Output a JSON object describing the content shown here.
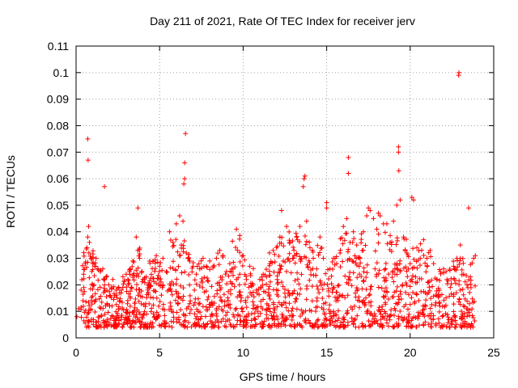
{
  "chart_data": {
    "type": "scatter",
    "title": "Day 211 of 2021, Rate Of TEC Index for receiver jerv",
    "xlabel": "GPS time / hours",
    "ylabel": "ROTI / TECUs",
    "xlim": [
      0,
      25
    ],
    "ylim": [
      0,
      0.11
    ],
    "grid": true,
    "marker": "+",
    "color": "#ff0000",
    "x_ticks": [
      {
        "value": 0,
        "label": "0"
      },
      {
        "value": 5,
        "label": "5"
      },
      {
        "value": 10,
        "label": "10"
      },
      {
        "value": 15,
        "label": "15"
      },
      {
        "value": 20,
        "label": "20"
      },
      {
        "value": 25,
        "label": "25"
      }
    ],
    "y_ticks": [
      {
        "value": 0,
        "label": "0"
      },
      {
        "value": 0.01,
        "label": "0.01"
      },
      {
        "value": 0.02,
        "label": "0.02"
      },
      {
        "value": 0.03,
        "label": "0.03"
      },
      {
        "value": 0.04,
        "label": "0.04"
      },
      {
        "value": 0.05,
        "label": "0.05"
      },
      {
        "value": 0.06,
        "label": "0.06"
      },
      {
        "value": 0.07,
        "label": "0.07"
      },
      {
        "value": 0.08,
        "label": "0.08"
      },
      {
        "value": 0.09,
        "label": "0.09"
      },
      {
        "value": 0.1,
        "label": "0.1"
      },
      {
        "value": 0.11,
        "label": "0.11"
      }
    ],
    "series": [
      {
        "name": "ROTI",
        "x": [
          0.05,
          0.15,
          0.3,
          0.45,
          0.55,
          0.65,
          0.7,
          0.75,
          0.8,
          0.9,
          1.0,
          1.1,
          1.2,
          1.3,
          1.45,
          1.6,
          1.7,
          1.8,
          2.0,
          2.2,
          2.4,
          2.6,
          2.8,
          3.0,
          3.2,
          3.4,
          3.6,
          3.7,
          3.8,
          4.0,
          4.2,
          4.4,
          4.6,
          4.8,
          5.0,
          5.2,
          5.4,
          5.6,
          5.8,
          6.0,
          6.2,
          6.3,
          6.4,
          6.5,
          6.6,
          6.7,
          6.8,
          7.0,
          7.2,
          7.4,
          7.6,
          7.8,
          8.0,
          8.2,
          8.4,
          8.6,
          8.8,
          9.0,
          9.2,
          9.4,
          9.6,
          9.8,
          10.0,
          10.2,
          10.4,
          10.6,
          10.8,
          11.0,
          11.2,
          11.4,
          11.6,
          11.8,
          12.0,
          12.2,
          12.4,
          12.6,
          12.8,
          13.0,
          13.2,
          13.4,
          13.6,
          13.7,
          13.8,
          14.0,
          14.2,
          14.4,
          14.6,
          14.8,
          15.0,
          15.2,
          15.4,
          15.6,
          15.8,
          16.0,
          16.2,
          16.3,
          16.4,
          16.6,
          16.8,
          17.0,
          17.2,
          17.4,
          17.6,
          17.8,
          18.0,
          18.2,
          18.4,
          18.6,
          18.8,
          19.0,
          19.2,
          19.3,
          19.4,
          19.6,
          19.8,
          20.0,
          20.2,
          20.4,
          20.6,
          20.8,
          21.0,
          21.2,
          21.4,
          21.6,
          21.8,
          22.0,
          22.2,
          22.4,
          22.6,
          22.8,
          23.0,
          23.2,
          23.4,
          23.6,
          23.8,
          23.9,
          0.7,
          0.72,
          1.7,
          6.45,
          6.5,
          6.55,
          13.65,
          16.3,
          19.3,
          19.32,
          20.1,
          22.9,
          22.92,
          23.5,
          12.3,
          15.0,
          17.5,
          9.6,
          18.1,
          23.0
        ],
        "y": [
          0.008,
          0.011,
          0.018,
          0.024,
          0.028,
          0.034,
          0.038,
          0.042,
          0.036,
          0.03,
          0.028,
          0.027,
          0.03,
          0.026,
          0.025,
          0.026,
          0.02,
          0.023,
          0.016,
          0.022,
          0.018,
          0.017,
          0.019,
          0.024,
          0.025,
          0.029,
          0.038,
          0.049,
          0.03,
          0.022,
          0.023,
          0.02,
          0.029,
          0.031,
          0.027,
          0.03,
          0.025,
          0.04,
          0.036,
          0.043,
          0.046,
          0.035,
          0.044,
          0.06,
          0.032,
          0.03,
          0.029,
          0.027,
          0.024,
          0.026,
          0.03,
          0.027,
          0.029,
          0.027,
          0.03,
          0.033,
          0.031,
          0.025,
          0.028,
          0.026,
          0.022,
          0.024,
          0.031,
          0.022,
          0.027,
          0.02,
          0.018,
          0.022,
          0.024,
          0.023,
          0.028,
          0.033,
          0.034,
          0.038,
          0.029,
          0.042,
          0.036,
          0.03,
          0.038,
          0.042,
          0.057,
          0.061,
          0.044,
          0.034,
          0.03,
          0.026,
          0.038,
          0.03,
          0.049,
          0.026,
          0.03,
          0.028,
          0.032,
          0.042,
          0.045,
          0.062,
          0.036,
          0.04,
          0.035,
          0.03,
          0.04,
          0.046,
          0.048,
          0.045,
          0.041,
          0.046,
          0.043,
          0.043,
          0.036,
          0.044,
          0.05,
          0.07,
          0.052,
          0.038,
          0.032,
          0.028,
          0.052,
          0.034,
          0.03,
          0.037,
          0.03,
          0.033,
          0.028,
          0.022,
          0.025,
          0.026,
          0.022,
          0.019,
          0.027,
          0.03,
          0.035,
          0.024,
          0.02,
          0.023,
          0.03,
          0.031,
          0.075,
          0.067,
          0.057,
          0.058,
          0.066,
          0.077,
          0.06,
          0.068,
          0.072,
          0.063,
          0.053,
          0.099,
          0.1,
          0.049,
          0.048,
          0.051,
          0.049,
          0.041,
          0.047,
          0.03
        ]
      }
    ]
  }
}
